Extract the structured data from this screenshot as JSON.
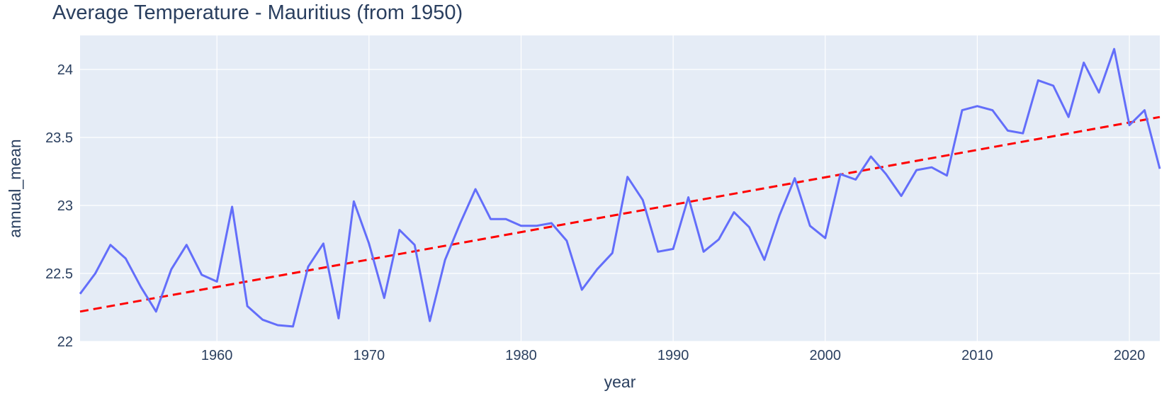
{
  "chart_data": {
    "type": "line",
    "title": "Average Temperature - Mauritius (from 1950)",
    "xlabel": "year",
    "ylabel": "annual_mean",
    "xlim": [
      1951,
      2022
    ],
    "ylim": [
      22,
      24.25
    ],
    "x_ticks": [
      1960,
      1970,
      1980,
      1990,
      2000,
      2010,
      2020
    ],
    "y_ticks": [
      22,
      22.5,
      23,
      23.5,
      24
    ],
    "y_tick_labels": [
      "22",
      "22.5",
      "23",
      "23.5",
      "24"
    ],
    "grid": true,
    "legend": "none",
    "colors": {
      "plot_bg": "#e5ecf6",
      "grid": "#ffffff",
      "series": "#636efa",
      "trend": "#ff0000",
      "text": "#2a3f5f"
    },
    "series": [
      {
        "x": [
          1951,
          1952,
          1953,
          1954,
          1955,
          1956,
          1957,
          1958,
          1959,
          1960,
          1961,
          1962,
          1963,
          1964,
          1965,
          1966,
          1967,
          1968,
          1969,
          1970,
          1971,
          1972,
          1973,
          1974,
          1975,
          1976,
          1977,
          1978,
          1979,
          1980,
          1981,
          1982,
          1983,
          1984,
          1985,
          1986,
          1987,
          1988,
          1989,
          1990,
          1991,
          1992,
          1993,
          1994,
          1995,
          1996,
          1997,
          1998,
          1999,
          2000,
          2001,
          2002,
          2003,
          2004,
          2005,
          2006,
          2007,
          2008,
          2009,
          2010,
          2011,
          2012,
          2013,
          2014,
          2015,
          2016,
          2017,
          2018,
          2019,
          2020,
          2021,
          2022
        ],
        "y": [
          22.35,
          22.5,
          22.71,
          22.61,
          22.4,
          22.22,
          22.53,
          22.71,
          22.49,
          22.44,
          22.99,
          22.26,
          22.16,
          22.12,
          22.11,
          22.55,
          22.72,
          22.17,
          23.03,
          22.72,
          22.32,
          22.82,
          22.71,
          22.15,
          22.6,
          22.87,
          23.12,
          22.9,
          22.9,
          22.85,
          22.85,
          22.87,
          22.74,
          22.38,
          22.53,
          22.65,
          23.21,
          23.04,
          22.66,
          22.68,
          23.06,
          22.66,
          22.75,
          22.95,
          22.84,
          22.6,
          22.93,
          23.2,
          22.85,
          22.76,
          23.23,
          23.19,
          23.36,
          23.23,
          23.07,
          23.26,
          23.28,
          23.22,
          23.7,
          23.73,
          23.7,
          23.55,
          23.53,
          23.92,
          23.88,
          23.65,
          24.05,
          23.83,
          24.15,
          23.59,
          23.7,
          23.27
        ],
        "style": "solid"
      },
      {
        "x": [
          1951,
          2022
        ],
        "y": [
          22.22,
          23.65
        ],
        "style": "dashed"
      }
    ]
  }
}
